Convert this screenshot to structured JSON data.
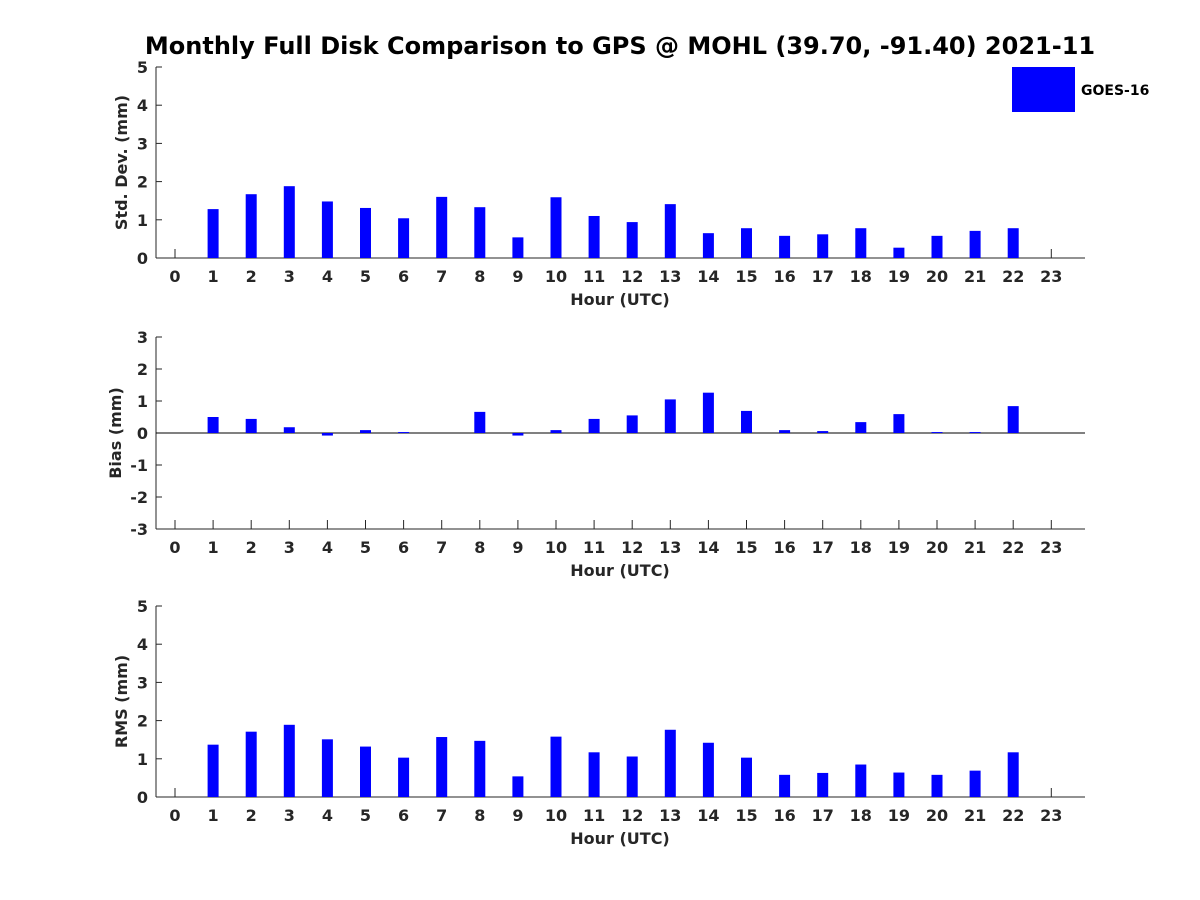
{
  "chart_data": {
    "title": "Monthly Full Disk Comparison to GPS @ MOHL (39.70, -91.40) 2021-11",
    "legend": {
      "label": "GOES-16",
      "placement": "top-right",
      "color": "#0000ff"
    },
    "bar_color": "#0000ff",
    "x_categories": [
      "0",
      "1",
      "2",
      "3",
      "4",
      "5",
      "6",
      "7",
      "8",
      "9",
      "10",
      "11",
      "12",
      "13",
      "14",
      "15",
      "16",
      "17",
      "18",
      "19",
      "20",
      "21",
      "22",
      "23"
    ],
    "panels": [
      {
        "type": "bar",
        "ylabel": "Std. Dev. (mm)",
        "xlabel": "Hour (UTC)",
        "ylim": [
          0,
          5
        ],
        "yticks": [
          "0",
          "1",
          "2",
          "3",
          "4",
          "5"
        ],
        "grid": false,
        "values": [
          null,
          1.28,
          1.67,
          1.88,
          1.48,
          1.31,
          1.04,
          1.6,
          1.33,
          0.54,
          1.59,
          1.1,
          0.94,
          1.41,
          0.65,
          0.78,
          0.58,
          0.62,
          0.78,
          0.27,
          0.58,
          0.71,
          0.78,
          null
        ]
      },
      {
        "type": "bar",
        "ylabel": "Bias (mm)",
        "xlabel": "Hour (UTC)",
        "ylim": [
          -3,
          3
        ],
        "yticks": [
          "-3",
          "-2",
          "-1",
          "0",
          "1",
          "2",
          "3"
        ],
        "grid": false,
        "zero_line": true,
        "values": [
          null,
          0.5,
          0.44,
          0.18,
          -0.08,
          0.09,
          0.03,
          null,
          0.66,
          -0.08,
          0.09,
          0.44,
          0.55,
          1.05,
          1.26,
          0.69,
          0.09,
          0.06,
          0.34,
          0.59,
          0.03,
          0.03,
          0.84,
          null
        ]
      },
      {
        "type": "bar",
        "ylabel": "RMS (mm)",
        "xlabel": "Hour (UTC)",
        "ylim": [
          0,
          5
        ],
        "yticks": [
          "0",
          "1",
          "2",
          "3",
          "4",
          "5"
        ],
        "grid": false,
        "values": [
          null,
          1.37,
          1.71,
          1.89,
          1.51,
          1.32,
          1.03,
          1.57,
          1.47,
          0.54,
          1.58,
          1.17,
          1.06,
          1.76,
          1.42,
          1.03,
          0.58,
          0.63,
          0.85,
          0.64,
          0.58,
          0.69,
          1.17,
          null
        ]
      }
    ]
  }
}
